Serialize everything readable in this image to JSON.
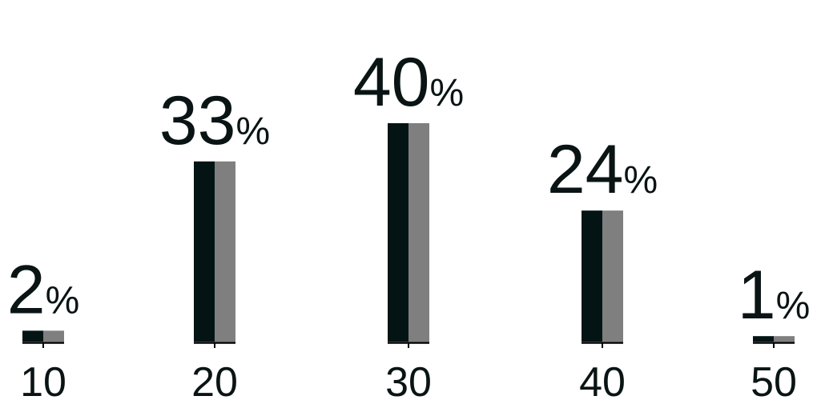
{
  "chart_data": {
    "type": "bar",
    "categories": [
      "10",
      "20",
      "30",
      "40",
      "50"
    ],
    "values": [
      2,
      33,
      40,
      24,
      1
    ],
    "value_suffix": "%",
    "ylim": [
      0,
      40
    ],
    "grid": false,
    "legend": "none",
    "title": "",
    "xlabel": "",
    "ylabel": ""
  },
  "colors": {
    "bar_left": "#041414",
    "bar_right": "#7f7f7f",
    "text": "#0a1414",
    "axis": "#000000",
    "background": "#ffffff"
  }
}
